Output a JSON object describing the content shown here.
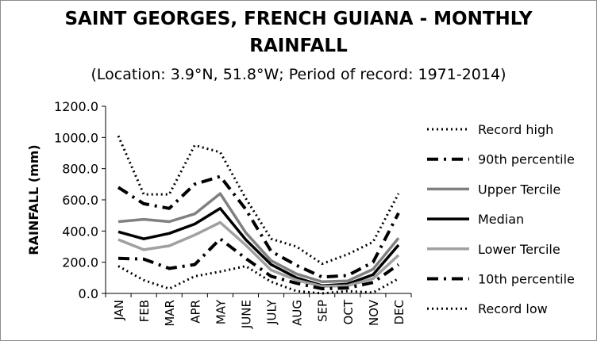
{
  "chart_data": {
    "type": "line",
    "title_line1": "SAINT GEORGES, FRENCH GUIANA - MONTHLY",
    "title_line2": "RAINFALL",
    "subtitle": "(Location: 3.9°N, 51.8°W; Period of record: 1971-2014)",
    "xlabel": "",
    "ylabel": "RAINFALL (mm)",
    "ylim": [
      0,
      1200
    ],
    "yticks": [
      "0.0",
      "200.0",
      "400.0",
      "600.0",
      "800.0",
      "1000.0",
      "1200.0"
    ],
    "categories": [
      "JAN",
      "FEB",
      "MAR",
      "APR",
      "MAY",
      "JUNE",
      "JULY",
      "AUG",
      "SEP",
      "OCT",
      "NOV",
      "DEC"
    ],
    "grid": false,
    "legend_position": "right",
    "series": [
      {
        "name": "Record high",
        "style": "dotted",
        "color": "#000000",
        "values": [
          1010,
          635,
          635,
          950,
          905,
          610,
          350,
          300,
          190,
          250,
          330,
          640
        ]
      },
      {
        "name": "90th percentile",
        "style": "dashdot",
        "color": "#000000",
        "values": [
          680,
          575,
          545,
          700,
          750,
          540,
          270,
          180,
          105,
          115,
          200,
          515
        ]
      },
      {
        "name": "Upper Tercile",
        "style": "solid",
        "color": "#808080",
        "values": [
          460,
          475,
          460,
          510,
          640,
          390,
          210,
          125,
          75,
          80,
          155,
          355
        ]
      },
      {
        "name": "Median",
        "style": "solid",
        "color": "#000000",
        "values": [
          395,
          350,
          385,
          445,
          545,
          345,
          185,
          100,
          50,
          60,
          120,
          310
        ]
      },
      {
        "name": "Lower Tercile",
        "style": "solid",
        "color": "#a0a0a0",
        "values": [
          345,
          280,
          305,
          375,
          455,
          310,
          150,
          85,
          45,
          50,
          95,
          245
        ]
      },
      {
        "name": "10th percentile",
        "style": "dashdot",
        "color": "#000000",
        "values": [
          225,
          220,
          160,
          185,
          350,
          225,
          110,
          65,
          30,
          35,
          70,
          185
        ]
      },
      {
        "name": "Record low",
        "style": "dotted",
        "color": "#000000",
        "values": [
          175,
          85,
          30,
          110,
          140,
          175,
          75,
          15,
          0,
          15,
          5,
          95
        ]
      }
    ]
  }
}
